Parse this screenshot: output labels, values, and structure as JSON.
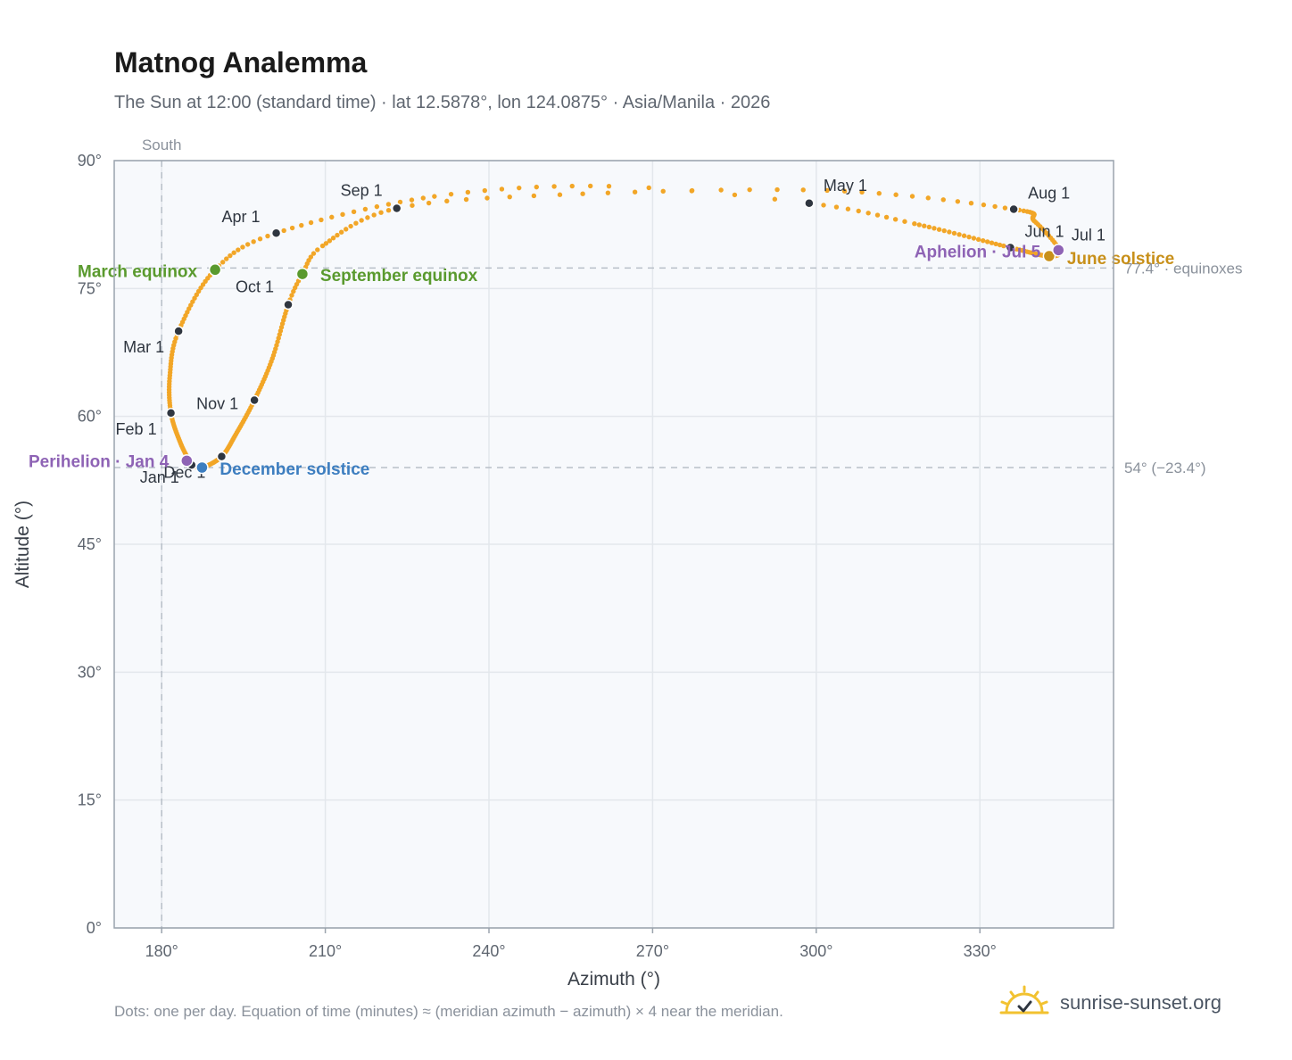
{
  "header": {
    "title": "Matnog Analemma",
    "subtitle": "The Sun at 12:00 (standard time) · lat 12.5878°, lon 124.0875° · Asia/Manila · 2026"
  },
  "footer": {
    "note": "Dots: one per day. Equation of time (minutes) ≈ (meridian azimuth − azimuth) × 4 near the meridian.",
    "brand": "sunrise-sunset.org"
  },
  "chart_data": {
    "type": "scatter",
    "xlabel": "Azimuth (°)",
    "ylabel": "Altitude (°)",
    "xlim": [
      171.3,
      354.5
    ],
    "ylim": [
      0,
      90
    ],
    "x_ticks": [
      {
        "value": 180,
        "label": "180°"
      },
      {
        "value": 210,
        "label": "210°"
      },
      {
        "value": 240,
        "label": "240°"
      },
      {
        "value": 270,
        "label": "270°"
      },
      {
        "value": 300,
        "label": "300°"
      },
      {
        "value": 330,
        "label": "330°"
      }
    ],
    "y_ticks": [
      {
        "value": 0,
        "label": "0°"
      },
      {
        "value": 15,
        "label": "15°"
      },
      {
        "value": 30,
        "label": "30°"
      },
      {
        "value": 45,
        "label": "45°"
      },
      {
        "value": 60,
        "label": "60°"
      },
      {
        "value": 75,
        "label": "75°"
      },
      {
        "value": 90,
        "label": "90°"
      }
    ],
    "grid": true,
    "reference_lines": [
      {
        "axis": "x",
        "value": 180,
        "label": "South"
      },
      {
        "axis": "y",
        "value": 77.4,
        "label": "77.4° · equinoxes"
      },
      {
        "axis": "y",
        "value": 54,
        "label": "54° (−23.4°)"
      }
    ],
    "path_knots": [
      {
        "day": 1,
        "az": 185.5,
        "alt": 54.3
      },
      {
        "day": 16,
        "az": 183.5,
        "alt": 56.8
      },
      {
        "day": 32,
        "az": 181.7,
        "alt": 60.4
      },
      {
        "day": 46,
        "az": 181.5,
        "alt": 64.8
      },
      {
        "day": 60,
        "az": 183.1,
        "alt": 70.0
      },
      {
        "day": 79,
        "az": 189.8,
        "alt": 77.2
      },
      {
        "day": 91,
        "az": 201.0,
        "alt": 81.5
      },
      {
        "day": 106,
        "az": 230.0,
        "alt": 85.8
      },
      {
        "day": 116,
        "az": 262.0,
        "alt": 87.0
      },
      {
        "day": 121,
        "az": 298.7,
        "alt": 85.0
      },
      {
        "day": 131,
        "az": 318.0,
        "alt": 82.6
      },
      {
        "day": 152,
        "az": 335.6,
        "alt": 79.8
      },
      {
        "day": 172,
        "az": 342.7,
        "alt": 78.8
      },
      {
        "day": 182,
        "az": 344.5,
        "alt": 79.6
      },
      {
        "day": 196,
        "az": 340.0,
        "alt": 82.9
      },
      {
        "day": 213,
        "az": 336.2,
        "alt": 84.3
      },
      {
        "day": 226,
        "az": 302.0,
        "alt": 86.5
      },
      {
        "day": 236,
        "az": 253.0,
        "alt": 86.0
      },
      {
        "day": 244,
        "az": 223.1,
        "alt": 84.4
      },
      {
        "day": 258,
        "az": 209.5,
        "alt": 80.0
      },
      {
        "day": 266,
        "az": 205.8,
        "alt": 76.7
      },
      {
        "day": 274,
        "az": 203.2,
        "alt": 73.1
      },
      {
        "day": 290,
        "az": 200.3,
        "alt": 66.8
      },
      {
        "day": 305,
        "az": 197.0,
        "alt": 61.9
      },
      {
        "day": 320,
        "az": 193.6,
        "alt": 57.9
      },
      {
        "day": 335,
        "az": 191.0,
        "alt": 55.3
      },
      {
        "day": 355,
        "az": 187.4,
        "alt": 54.0
      },
      {
        "day": 365,
        "az": 185.6,
        "alt": 54.3
      }
    ],
    "month_markers": [
      {
        "label": "Jan 1",
        "az": 185.5,
        "alt": 54.3
      },
      {
        "label": "Feb 1",
        "az": 181.7,
        "alt": 60.4
      },
      {
        "label": "Mar 1",
        "az": 183.1,
        "alt": 70.0
      },
      {
        "label": "Apr 1",
        "az": 201.0,
        "alt": 81.5
      },
      {
        "label": "May 1",
        "az": 298.7,
        "alt": 85.0
      },
      {
        "label": "Jun 1",
        "az": 335.6,
        "alt": 79.8
      },
      {
        "label": "Jul 1",
        "az": 344.5,
        "alt": 79.6
      },
      {
        "label": "Aug 1",
        "az": 336.2,
        "alt": 84.3
      },
      {
        "label": "Sep 1",
        "az": 223.1,
        "alt": 84.4
      },
      {
        "label": "Oct 1",
        "az": 203.2,
        "alt": 73.1
      },
      {
        "label": "Nov 1",
        "az": 197.0,
        "alt": 61.9
      },
      {
        "label": "Dec 1",
        "az": 191.0,
        "alt": 55.3
      }
    ],
    "events": [
      {
        "label": "March equinox",
        "az": 189.8,
        "alt": 77.2,
        "color": "#5a9a2e"
      },
      {
        "label": "September equinox",
        "az": 205.8,
        "alt": 76.7,
        "color": "#5a9a2e"
      },
      {
        "label": "June solstice",
        "az": 342.7,
        "alt": 78.8,
        "color": "#c8901a"
      },
      {
        "label": "December solstice",
        "az": 187.4,
        "alt": 54.0,
        "color": "#3d7ec0"
      },
      {
        "label": "Perihelion · Jan 4",
        "az": 184.6,
        "alt": 54.8,
        "color": "#8e63b5"
      },
      {
        "label": "Aphelion · Jul 5",
        "az": 344.4,
        "alt": 79.5,
        "color": "#8e63b5"
      }
    ],
    "colors": {
      "path": "#f2a627",
      "marker": "#2f3640",
      "plot_background": "#f7f9fc",
      "grid": "#e3e7ec",
      "axis": "#9aa3ad",
      "reference": "#b8bfc8"
    }
  }
}
